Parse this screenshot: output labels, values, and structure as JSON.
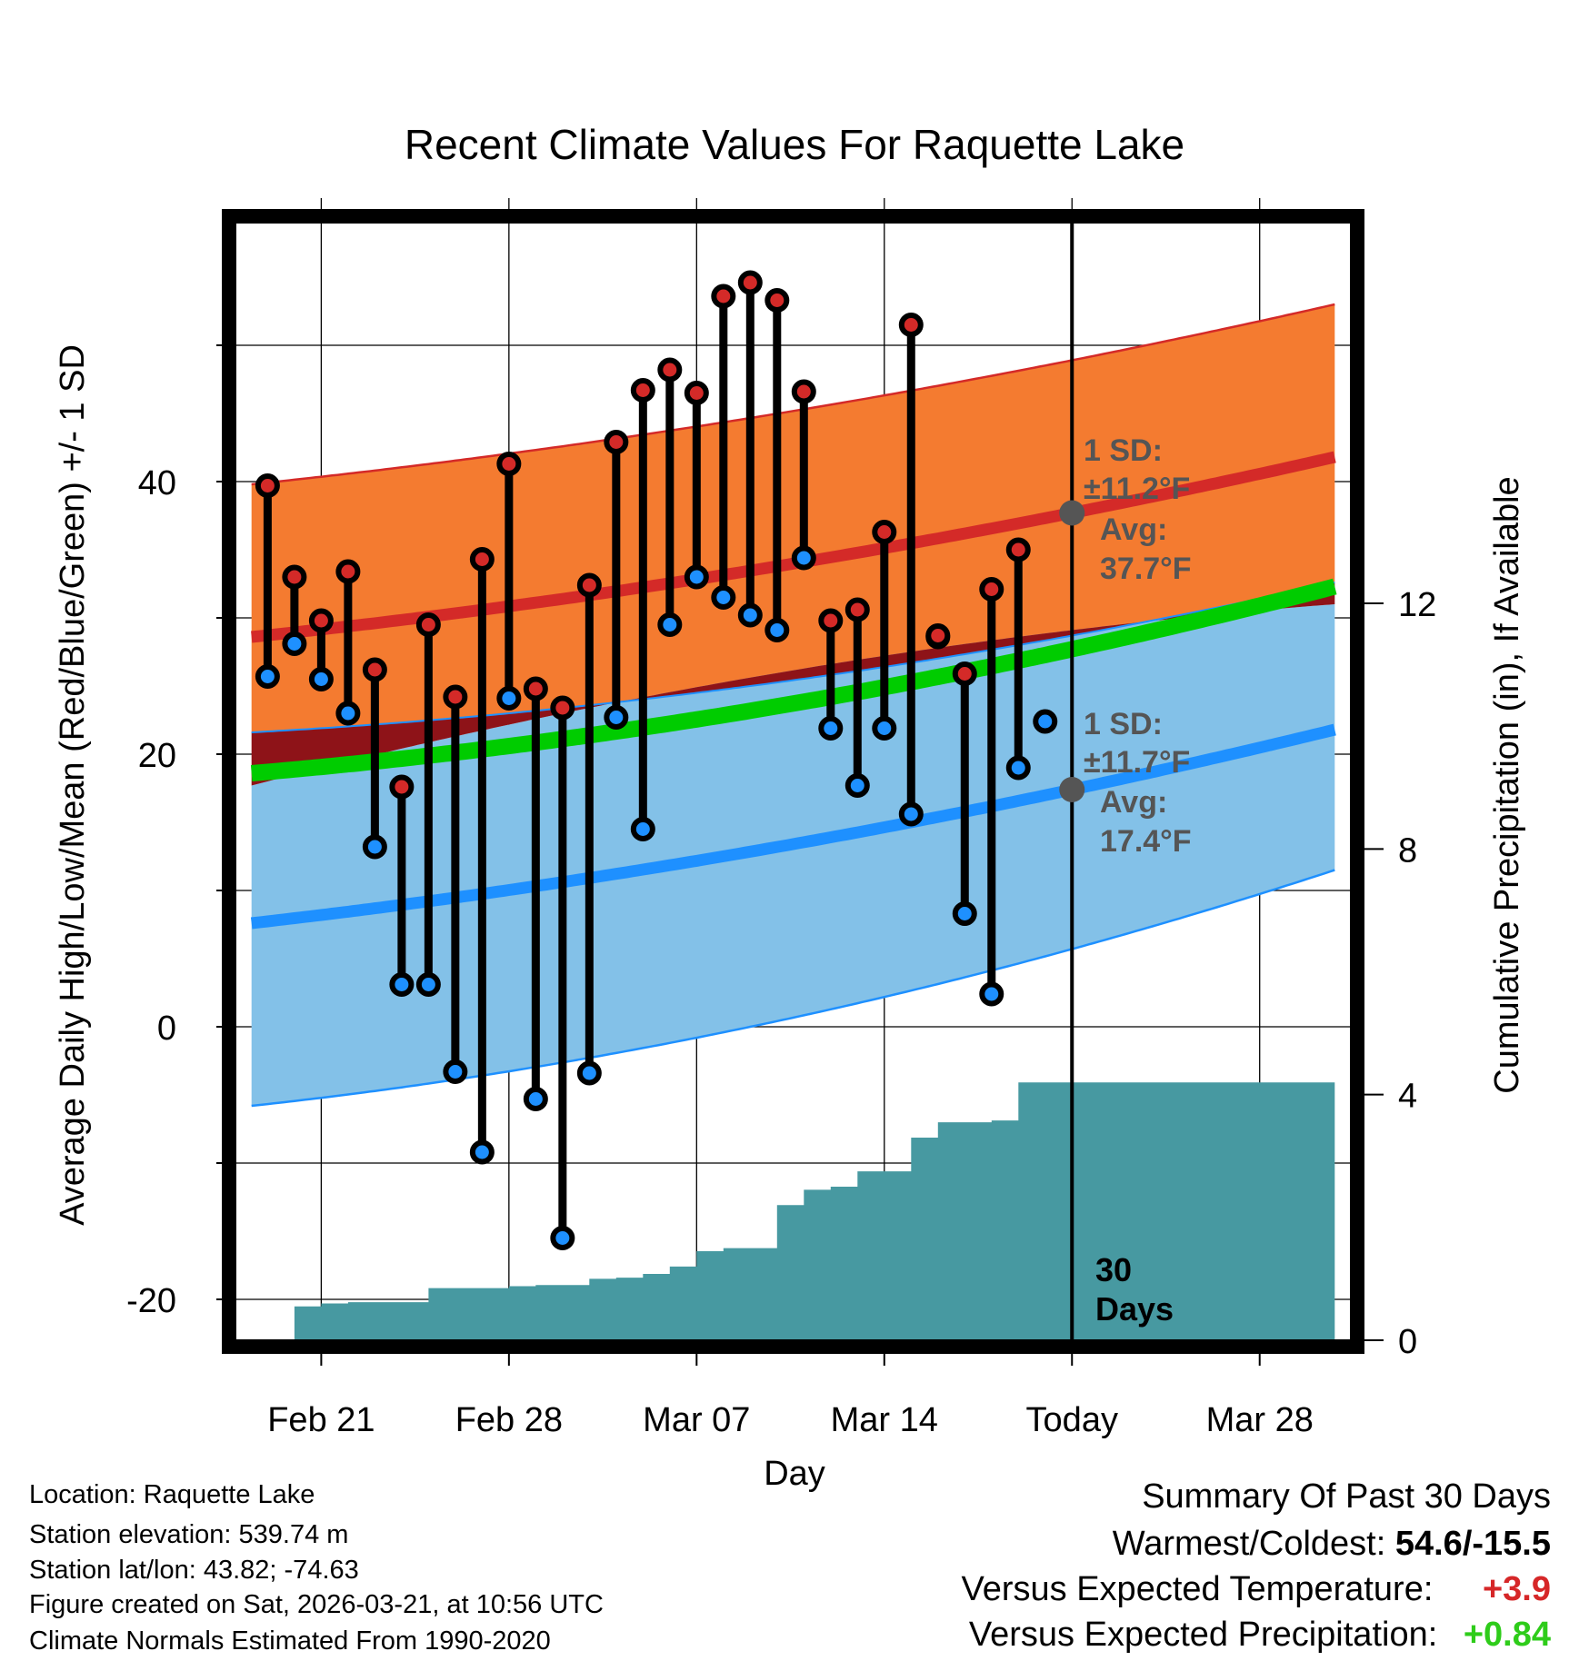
{
  "chart_data": {
    "type": "line",
    "title": "Recent Climate Values For Raquette Lake",
    "xlabel": "Day",
    "ylabel_left": "Average Daily High/Low/Mean (Red/Blue/Green) +/- 1 SD",
    "ylabel_right": "Cumulative Precipitation (in), If Available",
    "x_range": [
      -3.2,
      38.4
    ],
    "ylim_left": [
      -23,
      59
    ],
    "ylim_right": [
      0,
      18.2
    ],
    "x_ticks": [
      {
        "day": 0,
        "label": "Feb 21"
      },
      {
        "day": 7,
        "label": "Feb 28"
      },
      {
        "day": 14,
        "label": "Mar 07"
      },
      {
        "day": 21,
        "label": "Mar 14"
      },
      {
        "day": 28,
        "label": "Today"
      },
      {
        "day": 35,
        "label": "Mar 28"
      }
    ],
    "y_ticks_left": [
      -20,
      0,
      20,
      40
    ],
    "y_ticks_right": [
      0,
      4,
      8,
      12
    ],
    "today_day": 28,
    "normals": {
      "days": [
        -2.6,
        28,
        37.8
      ],
      "avg_high": [
        28.6,
        37.7,
        41.8
      ],
      "avg_high_upper": [
        39.8,
        48.9,
        53.0
      ],
      "avg_high_lower": [
        21.6,
        28.7,
        32.6
      ],
      "avg_low": [
        7.6,
        17.4,
        21.8
      ],
      "avg_low_upper": [
        17.7,
        29.1,
        31.0
      ],
      "avg_low_lower": [
        -5.8,
        5.7,
        11.5
      ],
      "avg_mean": [
        18.6,
        27.7,
        32.3
      ]
    },
    "highs_lows": {
      "days": [
        -2,
        -1,
        0,
        1,
        2,
        3,
        4,
        5,
        6,
        7,
        8,
        9,
        10,
        11,
        12,
        13,
        14,
        15,
        16,
        17,
        18,
        19,
        20,
        21,
        22,
        23,
        24,
        25,
        26,
        27
      ],
      "high": [
        39.7,
        33.0,
        29.8,
        33.4,
        26.2,
        17.6,
        29.5,
        24.2,
        34.3,
        41.3,
        24.8,
        23.4,
        32.4,
        42.9,
        46.7,
        48.2,
        46.5,
        53.6,
        54.6,
        53.3,
        46.6,
        29.8,
        30.6,
        36.3,
        51.5,
        28.7,
        25.9,
        32.1,
        35.0,
        null
      ],
      "low": [
        25.7,
        28.1,
        25.5,
        23.0,
        13.2,
        3.1,
        3.1,
        -3.3,
        -9.2,
        24.1,
        -5.3,
        -15.5,
        -3.4,
        22.7,
        14.5,
        29.5,
        33.0,
        31.5,
        30.2,
        29.1,
        34.4,
        21.9,
        17.7,
        21.9,
        15.6,
        28.6,
        8.3,
        2.4,
        19.0,
        22.4
      ]
    },
    "precip_cumulative": {
      "days": [
        -2.6,
        -1.6,
        -1.0,
        0,
        1,
        2,
        3,
        4,
        5,
        6,
        7,
        8,
        9,
        10,
        11,
        12,
        13,
        14,
        15,
        16,
        17,
        18,
        19,
        20,
        21,
        22,
        23,
        24,
        25,
        26,
        27,
        28,
        37.8
      ],
      "values": [
        0,
        0,
        0.55,
        0.6,
        0.62,
        0.62,
        0.62,
        0.85,
        0.85,
        0.85,
        0.88,
        0.9,
        0.9,
        1.0,
        1.02,
        1.08,
        1.2,
        1.45,
        1.5,
        1.5,
        2.2,
        2.45,
        2.5,
        2.75,
        2.75,
        3.3,
        3.55,
        3.55,
        3.58,
        4.2,
        4.2,
        4.2,
        4.2
      ]
    },
    "annotations": {
      "high_sd_title": "1 SD:",
      "high_sd_value": "±11.2°F",
      "high_avg_title": "Avg:",
      "high_avg_value": "37.7°F",
      "low_sd_title": "1 SD:",
      "low_sd_value": "±11.7°F",
      "low_avg_title": "Avg:",
      "low_avg_value": "17.4°F",
      "days_label_1": "30",
      "days_label_2": "Days"
    },
    "colors": {
      "high_band": "#f47b30",
      "high_line": "#d42a28",
      "low_band": "#83c1e8",
      "low_line": "#1e90ff",
      "overlap": "#8e1318",
      "mean_line": "#00cc00",
      "precip": "#4799a1",
      "high_dot": "#d42a28",
      "low_dot": "#1e90ff",
      "annotation": "#555555"
    }
  },
  "info": {
    "location": "Location: Raquette Lake",
    "elevation": "Station elevation: 539.74 m",
    "latlon": "Station lat/lon: 43.82; -74.63",
    "created": "Figure created on Sat, 2026-03-21, at 10:56 UTC",
    "normals": "Climate Normals Estimated From 1990-2020"
  },
  "summary": {
    "title": "Summary Of Past 30 Days",
    "warm_cold_label": "Warmest/Coldest:",
    "warm_cold_value": "54.6/-15.5",
    "temp_label": "Versus Expected Temperature:",
    "temp_value": "+3.9",
    "precip_label": "Versus Expected Precipitation:",
    "precip_value": "+0.84"
  }
}
